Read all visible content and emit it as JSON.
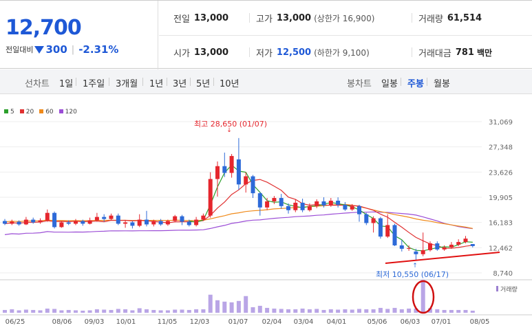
{
  "stock": {
    "price": "12,700",
    "change_label": "전일대비",
    "change_amount": "300",
    "change_pct": "-2.31%"
  },
  "quotes": {
    "prev_close_label": "전일",
    "prev_close": "13,000",
    "high_label": "고가",
    "high": "13,000",
    "upper_limit": "(상한가 16,900)",
    "volume_label": "거래량",
    "volume": "61,514",
    "open_label": "시가",
    "open": "13,000",
    "low_label": "저가",
    "low": "12,500",
    "lower_limit": "(하한가 9,100)",
    "amount_label": "거래대금",
    "amount": "781",
    "amount_unit": "백만"
  },
  "tabs": {
    "line_chart": "선차트",
    "periods": [
      "1일",
      "1주일",
      "3개월",
      "1년",
      "3년",
      "5년",
      "10년"
    ],
    "candle_chart": "봉차트",
    "candle_periods": [
      "일봉",
      "주봉",
      "월봉"
    ],
    "active_candle": "주봉"
  },
  "chart": {
    "legend": [
      {
        "label": "5",
        "color": "#2ca02c"
      },
      {
        "label": "20",
        "color": "#e03030"
      },
      {
        "label": "60",
        "color": "#f08a1a"
      },
      {
        "label": "120",
        "color": "#9b4dd6"
      }
    ],
    "y_ticks": [
      "31,069",
      "27,348",
      "23,626",
      "19,905",
      "16,183",
      "12,462",
      "8,740"
    ],
    "high_annotation": "최고 28,650 (01/07)",
    "low_annotation": "최저 10,550 (06/17)",
    "volume_label": "거래량",
    "x_ticks": [
      "06/25",
      "08/06",
      "09/03",
      "10/01",
      "11/05",
      "12/03",
      "01/07",
      "02/04",
      "03/04",
      "04/01",
      "05/06",
      "06/03",
      "07/01",
      "08/05"
    ],
    "up_color": "#e5262d",
    "down_color": "#2d6ad8"
  },
  "chart_data": {
    "type": "candlestick",
    "y_axis_ticks": [
      31069,
      27348,
      23626,
      19905,
      16183,
      12462,
      8740
    ],
    "ylim": [
      8740,
      31069
    ],
    "high": {
      "value": 28650,
      "date": "01/07"
    },
    "low": {
      "value": 10550,
      "date": "06/17"
    },
    "candles": [
      {
        "o": 16400,
        "c": 16000,
        "h": 16700,
        "l": 15800
      },
      {
        "o": 16000,
        "c": 16300,
        "h": 16600,
        "l": 15800
      },
      {
        "o": 16300,
        "c": 15900,
        "h": 16500,
        "l": 15700
      },
      {
        "o": 15900,
        "c": 16600,
        "h": 17000,
        "l": 15800
      },
      {
        "o": 16600,
        "c": 16200,
        "h": 16900,
        "l": 16000
      },
      {
        "o": 16200,
        "c": 16500,
        "h": 16800,
        "l": 16000
      },
      {
        "o": 16500,
        "c": 17600,
        "h": 18100,
        "l": 16300
      },
      {
        "o": 17600,
        "c": 15500,
        "h": 17800,
        "l": 15300
      },
      {
        "o": 15500,
        "c": 16200,
        "h": 16400,
        "l": 15400
      },
      {
        "o": 16200,
        "c": 16000,
        "h": 16500,
        "l": 15800
      },
      {
        "o": 16000,
        "c": 16400,
        "h": 16700,
        "l": 15800
      },
      {
        "o": 16400,
        "c": 16000,
        "h": 16600,
        "l": 15700
      },
      {
        "o": 16000,
        "c": 16500,
        "h": 16900,
        "l": 15900
      },
      {
        "o": 16500,
        "c": 17000,
        "h": 17600,
        "l": 16300
      },
      {
        "o": 17000,
        "c": 16700,
        "h": 17400,
        "l": 16300
      },
      {
        "o": 16700,
        "c": 17200,
        "h": 17500,
        "l": 16500
      },
      {
        "o": 17200,
        "c": 16000,
        "h": 17500,
        "l": 15800
      },
      {
        "o": 16000,
        "c": 16200,
        "h": 16500,
        "l": 15400
      },
      {
        "o": 16200,
        "c": 15700,
        "h": 16400,
        "l": 15300
      },
      {
        "o": 15700,
        "c": 16600,
        "h": 17400,
        "l": 15500
      },
      {
        "o": 16600,
        "c": 15900,
        "h": 17900,
        "l": 15600
      },
      {
        "o": 15900,
        "c": 16400,
        "h": 16600,
        "l": 15600
      },
      {
        "o": 16400,
        "c": 15900,
        "h": 16700,
        "l": 15700
      },
      {
        "o": 15900,
        "c": 16400,
        "h": 16600,
        "l": 15700
      },
      {
        "o": 16400,
        "c": 17100,
        "h": 17300,
        "l": 16200
      },
      {
        "o": 17100,
        "c": 16300,
        "h": 17300,
        "l": 15800
      },
      {
        "o": 16300,
        "c": 15800,
        "h": 16600,
        "l": 15600
      },
      {
        "o": 15800,
        "c": 16600,
        "h": 17000,
        "l": 15600
      },
      {
        "o": 16600,
        "c": 17200,
        "h": 17500,
        "l": 16400
      },
      {
        "o": 17200,
        "c": 22600,
        "h": 23600,
        "l": 16900
      },
      {
        "o": 22600,
        "c": 24500,
        "h": 25200,
        "l": 20000
      },
      {
        "o": 24500,
        "c": 23500,
        "h": 26500,
        "l": 22900
      },
      {
        "o": 23500,
        "c": 26000,
        "h": 26300,
        "l": 22800
      },
      {
        "o": 25500,
        "c": 21800,
        "h": 28650,
        "l": 21000
      },
      {
        "o": 21800,
        "c": 23000,
        "h": 23600,
        "l": 20600
      },
      {
        "o": 23000,
        "c": 20500,
        "h": 23200,
        "l": 19800
      },
      {
        "o": 20500,
        "c": 18400,
        "h": 20700,
        "l": 17200
      },
      {
        "o": 18400,
        "c": 19300,
        "h": 19800,
        "l": 18000
      },
      {
        "o": 19300,
        "c": 19800,
        "h": 20100,
        "l": 18900
      },
      {
        "o": 19800,
        "c": 18600,
        "h": 20400,
        "l": 18200
      },
      {
        "o": 18600,
        "c": 18000,
        "h": 19000,
        "l": 17500
      },
      {
        "o": 18000,
        "c": 19100,
        "h": 19600,
        "l": 17700
      },
      {
        "o": 19100,
        "c": 18000,
        "h": 19700,
        "l": 17700
      },
      {
        "o": 18000,
        "c": 18600,
        "h": 19000,
        "l": 17800
      },
      {
        "o": 18600,
        "c": 19300,
        "h": 19600,
        "l": 18300
      },
      {
        "o": 19300,
        "c": 18700,
        "h": 19900,
        "l": 18400
      },
      {
        "o": 18700,
        "c": 19400,
        "h": 19800,
        "l": 18500
      },
      {
        "o": 19400,
        "c": 18800,
        "h": 19900,
        "l": 18400
      },
      {
        "o": 18800,
        "c": 18100,
        "h": 19200,
        "l": 17900
      },
      {
        "o": 18100,
        "c": 18600,
        "h": 18900,
        "l": 17900
      },
      {
        "o": 18600,
        "c": 17400,
        "h": 18800,
        "l": 16300
      },
      {
        "o": 17400,
        "c": 16100,
        "h": 17600,
        "l": 15800
      },
      {
        "o": 16100,
        "c": 16800,
        "h": 17100,
        "l": 14700
      },
      {
        "o": 16800,
        "c": 14100,
        "h": 17000,
        "l": 13800
      },
      {
        "o": 14100,
        "c": 15800,
        "h": 17400,
        "l": 13900
      },
      {
        "o": 15800,
        "c": 12800,
        "h": 16000,
        "l": 12700
      },
      {
        "o": 12800,
        "c": 12300,
        "h": 13600,
        "l": 11900
      },
      {
        "o": 12300,
        "c": 12400,
        "h": 12800,
        "l": 12000
      },
      {
        "o": 11900,
        "c": 11500,
        "h": 12300,
        "l": 10550
      },
      {
        "o": 11500,
        "c": 12100,
        "h": 14700,
        "l": 11200
      },
      {
        "o": 12100,
        "c": 13100,
        "h": 13400,
        "l": 11900
      },
      {
        "o": 13100,
        "c": 12200,
        "h": 13400,
        "l": 12000
      },
      {
        "o": 12200,
        "c": 12500,
        "h": 12800,
        "l": 12000
      },
      {
        "o": 12500,
        "c": 12900,
        "h": 13300,
        "l": 12300
      },
      {
        "o": 12900,
        "c": 13300,
        "h": 13700,
        "l": 12700
      },
      {
        "o": 13300,
        "c": 13800,
        "h": 14200,
        "l": 13100
      },
      {
        "o": 13000,
        "c": 12700,
        "h": 13000,
        "l": 12500
      }
    ],
    "volume": [
      0.8,
      1.0,
      0.7,
      0.9,
      0.8,
      0.7,
      1.2,
      1.1,
      0.7,
      0.8,
      0.7,
      0.6,
      0.7,
      1.0,
      0.9,
      0.8,
      1.1,
      1.0,
      0.7,
      1.3,
      1.0,
      0.8,
      0.7,
      0.7,
      0.9,
      0.9,
      0.8,
      1.0,
      1.0,
      5.2,
      3.6,
      3.2,
      3.0,
      3.4,
      4.8,
      1.6,
      2.0,
      1.4,
      1.2,
      1.1,
      1.0,
      1.0,
      1.2,
      1.0,
      1.1,
      0.8,
      1.0,
      0.9,
      1.0,
      0.9,
      1.1,
      1.0,
      1.0,
      1.4,
      1.1,
      1.4,
      1.0,
      1.2,
      1.2,
      9.5,
      1.3,
      1.0,
      0.8,
      0.8,
      0.8,
      0.8,
      0.6
    ]
  }
}
